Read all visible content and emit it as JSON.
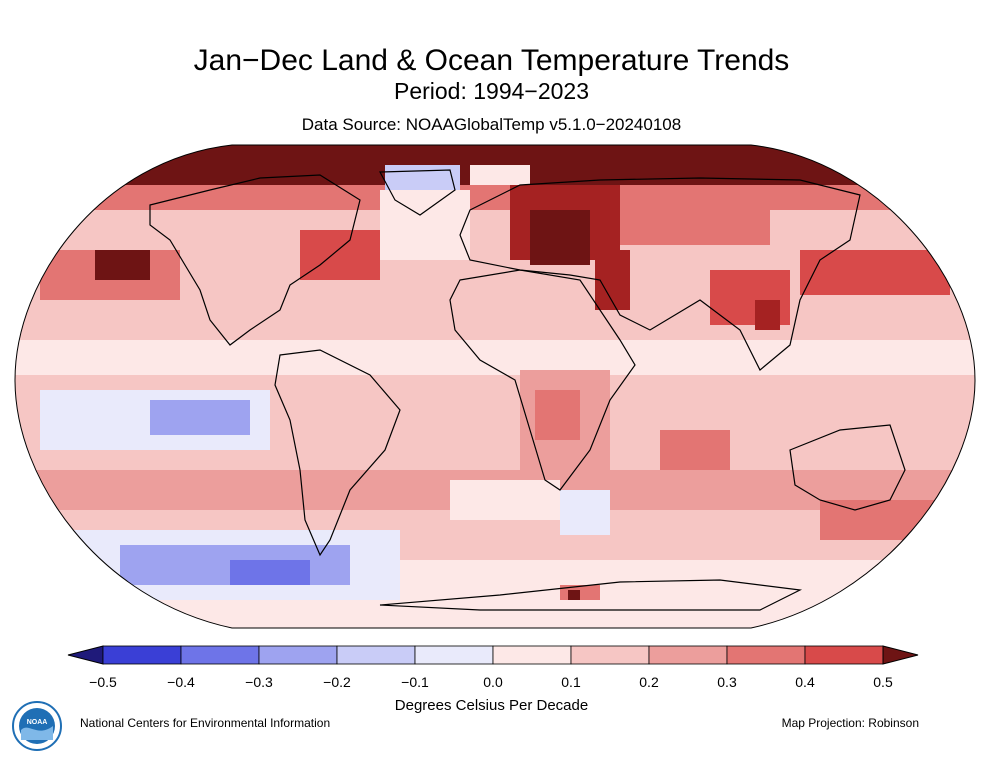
{
  "header": {
    "title": "Jan−Dec Land & Ocean Temperature Trends",
    "period": "Period: 1994−2023",
    "source": "Data Source: NOAAGlobalTemp v5.1.0−20240108"
  },
  "legend": {
    "ticks": [
      "−0.5",
      "−0.4",
      "−0.3",
      "−0.2",
      "−0.1",
      "0.0",
      "0.1",
      "0.2",
      "0.3",
      "0.4",
      "0.5"
    ],
    "units": "Degrees Celsius Per Decade",
    "colors": [
      "#1f1a7a",
      "#3a3fd6",
      "#6e74e8",
      "#9ea3f0",
      "#c9ccf7",
      "#e9eafb",
      "#fde8e7",
      "#f6c6c4",
      "#ec9e9c",
      "#e37573",
      "#d84a4a",
      "#6e1414"
    ]
  },
  "footer": {
    "org": "National Centers for Environmental Information",
    "projection": "Map Projection: Robinson",
    "logo_text": "NOAA"
  }
}
